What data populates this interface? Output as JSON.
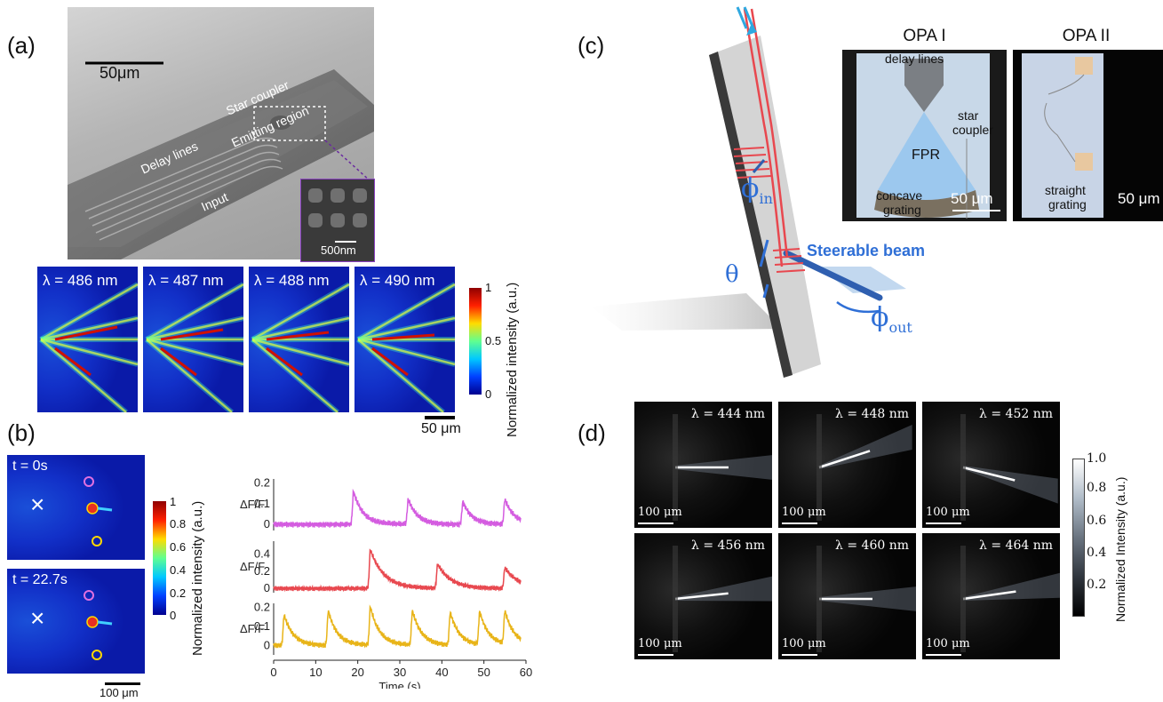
{
  "panel_labels": {
    "a": "(a)",
    "b": "(b)",
    "c": "(c)",
    "d": "(d)"
  },
  "panel_a": {
    "sem": {
      "scale_bar": "50μm",
      "labels": {
        "star_coupler": "Star coupler",
        "delay_lines": "Delay lines",
        "emitting_region": "Emitting region",
        "input": "Input"
      },
      "inset_scale": "500nm"
    },
    "beam_images": [
      {
        "lambda": "λ = 486 nm"
      },
      {
        "lambda": "λ = 487 nm"
      },
      {
        "lambda": "λ = 488 nm"
      },
      {
        "lambda": "λ = 490 nm"
      }
    ],
    "scale_bar": "50 μm",
    "colorbar": {
      "ticks": [
        "1",
        "0.5",
        "0"
      ],
      "label": "Normalized intensity (a.u.)"
    }
  },
  "panel_b": {
    "frames": [
      {
        "time": "t = 0s"
      },
      {
        "time": "t = 22.7s"
      }
    ],
    "marker": "×",
    "scale_bar": "100 μm",
    "colorbar": {
      "ticks": [
        "1",
        "0.8",
        "0.6",
        "0.4",
        "0.2",
        "0"
      ],
      "label": "Normalized intensity (a.u.)"
    },
    "traces": {
      "ylabel": "ΔF/F",
      "xlabel": "Time (s)",
      "xticks": [
        "0",
        "10",
        "20",
        "30",
        "40",
        "50",
        "60"
      ],
      "rows": [
        {
          "color": "#d45ce0",
          "yticks": [
            "0.2",
            "0.1",
            "0"
          ]
        },
        {
          "color": "#e8484f",
          "yticks": [
            "0.4",
            "0.2",
            "0"
          ]
        },
        {
          "color": "#e8b418",
          "yticks": [
            "0.2",
            "0.1",
            "0"
          ]
        }
      ]
    }
  },
  "panel_c": {
    "phi_in": "ϕ",
    "phi_in_sub": "in",
    "theta": "θ",
    "phi_out": "ϕ",
    "phi_out_sub": "out",
    "steerable_beam": "Steerable beam",
    "opa1": {
      "title": "OPA I",
      "labels": {
        "delay_lines": "delay lines",
        "star": "star",
        "coupler": "coupler",
        "fpr": "FPR",
        "concave": "concave",
        "grating": "grating"
      },
      "scale": "50 μm"
    },
    "opa2": {
      "title": "OPA II",
      "labels": {
        "straight": "straight",
        "grating": "grating"
      },
      "scale": "50 μm"
    }
  },
  "panel_d": {
    "images": [
      {
        "lambda": "λ = 444 nm"
      },
      {
        "lambda": "λ = 448 nm"
      },
      {
        "lambda": "λ = 452 nm"
      },
      {
        "lambda": "λ = 456 nm"
      },
      {
        "lambda": "λ = 460 nm"
      },
      {
        "lambda": "λ = 464 nm"
      }
    ],
    "scale_bar": "100 μm",
    "colorbar": {
      "ticks": [
        "1.0",
        "0.8",
        "0.6",
        "0.4",
        "0.2"
      ],
      "label": "Normalized Intensity (a.u.)"
    }
  },
  "colors": {
    "jet_top": "#b30000",
    "jet_bottom": "#00008f",
    "beam_red": "#e8484f",
    "accent_blue": "#2f6fd6"
  }
}
